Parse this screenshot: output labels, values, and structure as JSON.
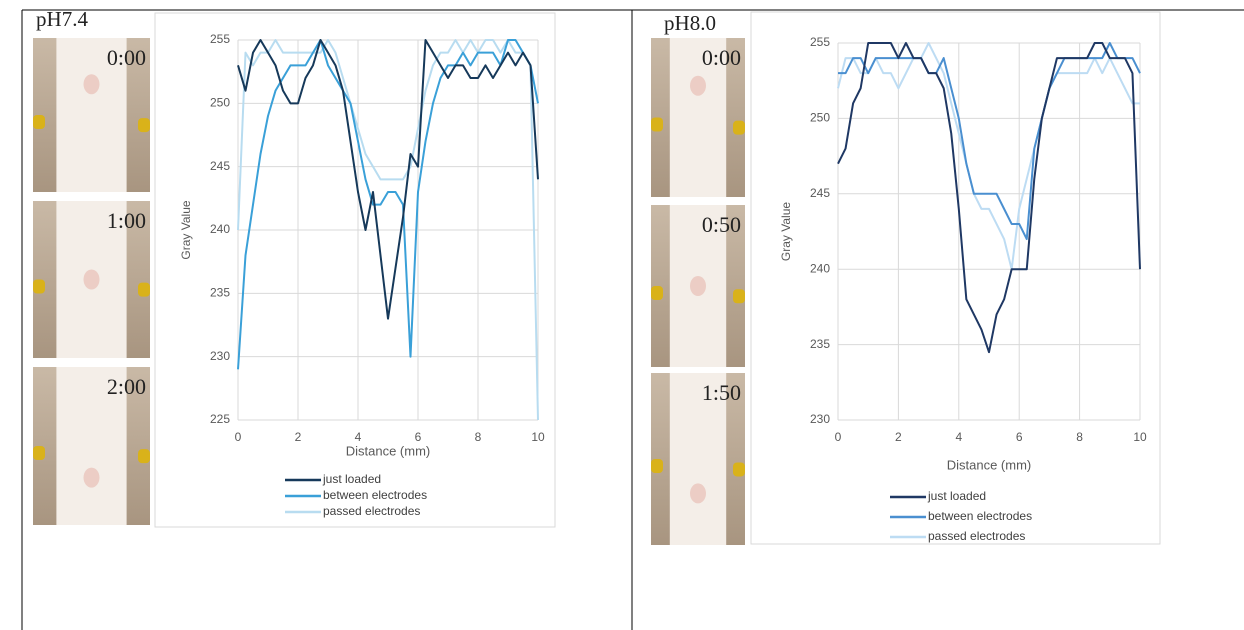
{
  "chart_data": [
    {
      "type": "line",
      "xlabel": "Distance (mm)",
      "ylabel": "Gray Value",
      "xlim": [
        0,
        10
      ],
      "xticks": [
        0,
        2,
        4,
        6,
        8,
        10
      ],
      "ylim": [
        225,
        255
      ],
      "yticks": [
        225,
        230,
        235,
        240,
        245,
        250,
        255
      ],
      "grid": true,
      "legend": "bottom",
      "x": [
        0,
        0.25,
        0.5,
        0.75,
        1,
        1.25,
        1.5,
        1.75,
        2,
        2.25,
        2.5,
        2.75,
        3,
        3.25,
        3.5,
        3.75,
        4,
        4.25,
        4.5,
        4.75,
        5,
        5.25,
        5.5,
        5.75,
        6,
        6.25,
        6.5,
        6.75,
        7,
        7.25,
        7.5,
        7.75,
        8,
        8.25,
        8.5,
        8.75,
        9,
        9.25,
        9.5,
        9.75,
        10
      ],
      "series": [
        {
          "name": "just loaded",
          "color": "#16395a",
          "values": [
            253,
            251,
            254,
            255,
            254,
            253,
            251,
            250,
            250,
            252,
            253,
            255,
            254,
            253,
            251,
            247,
            243,
            240,
            243,
            238,
            233,
            237,
            241,
            246,
            245,
            255,
            254,
            253,
            252,
            253,
            253,
            252,
            252,
            253,
            252,
            253,
            254,
            253,
            254,
            253,
            244
          ]
        },
        {
          "name": "between electrodes",
          "color": "#3aa0d8",
          "values": [
            229,
            238,
            242,
            246,
            249,
            251,
            252,
            253,
            253,
            253,
            254,
            255,
            253,
            252,
            251,
            250,
            247,
            244,
            242,
            242,
            243,
            243,
            242,
            230,
            243,
            247,
            250,
            252,
            253,
            253,
            254,
            253,
            254,
            254,
            254,
            253,
            255,
            255,
            254,
            253,
            250
          ]
        },
        {
          "name": "passed electrodes",
          "color": "#b8dcf0",
          "values": [
            240,
            254,
            253,
            254,
            254,
            255,
            254,
            254,
            254,
            254,
            254,
            254,
            255,
            254,
            252,
            250,
            248,
            246,
            245,
            244,
            244,
            244,
            244,
            245,
            248,
            251,
            253,
            254,
            254,
            255,
            254,
            255,
            254,
            255,
            255,
            254,
            255,
            254,
            254,
            253,
            225
          ]
        }
      ]
    },
    {
      "type": "line",
      "xlabel": "Distance (mm)",
      "ylabel": "Gray Value",
      "xlim": [
        0,
        10
      ],
      "xticks": [
        0,
        2,
        4,
        6,
        8,
        10
      ],
      "ylim": [
        230,
        255
      ],
      "yticks": [
        230,
        235,
        240,
        245,
        250,
        255
      ],
      "grid": true,
      "legend": "bottom",
      "x": [
        0,
        0.25,
        0.5,
        0.75,
        1,
        1.25,
        1.5,
        1.75,
        2,
        2.25,
        2.5,
        2.75,
        3,
        3.25,
        3.5,
        3.75,
        4,
        4.25,
        4.5,
        4.75,
        5,
        5.25,
        5.5,
        5.75,
        6,
        6.25,
        6.5,
        6.75,
        7,
        7.25,
        7.5,
        7.75,
        8,
        8.25,
        8.5,
        8.75,
        9,
        9.25,
        9.5,
        9.75,
        10
      ],
      "series": [
        {
          "name": "just loaded",
          "color": "#1f3864",
          "values": [
            247,
            248,
            251,
            252,
            255,
            255,
            255,
            255,
            254,
            255,
            254,
            254,
            253,
            253,
            252,
            249,
            244,
            238,
            237,
            236,
            234.5,
            237,
            238,
            240,
            240,
            240,
            246,
            250,
            252,
            254,
            254,
            254,
            254,
            254,
            255,
            255,
            254,
            254,
            254,
            253,
            240
          ]
        },
        {
          "name": "between electrodes",
          "color": "#4a8fd0",
          "values": [
            253,
            253,
            254,
            254,
            253,
            254,
            254,
            254,
            254,
            254,
            254,
            254,
            253,
            253,
            254,
            252,
            250,
            247,
            245,
            245,
            245,
            245,
            244,
            243,
            243,
            242,
            248,
            250,
            252,
            253,
            254,
            254,
            254,
            254,
            254,
            254,
            255,
            254,
            254,
            254,
            253
          ]
        },
        {
          "name": "passed electrodes",
          "color": "#bddcf3",
          "values": [
            252,
            254,
            254,
            253,
            253,
            254,
            253,
            253,
            252,
            253,
            254,
            254,
            255,
            254,
            253,
            251,
            249,
            247,
            245,
            244,
            244,
            243,
            242,
            240,
            244,
            246,
            248,
            250,
            252,
            253,
            253,
            253,
            253,
            253,
            254,
            253,
            254,
            253,
            252,
            251,
            251
          ]
        }
      ]
    }
  ],
  "panels": [
    {
      "title": "pH7.4",
      "times": [
        "0:00",
        "1:00",
        "2:00"
      ]
    },
    {
      "title": "pH8.0",
      "times": [
        "0:00",
        "0:50",
        "1:50"
      ]
    }
  ]
}
